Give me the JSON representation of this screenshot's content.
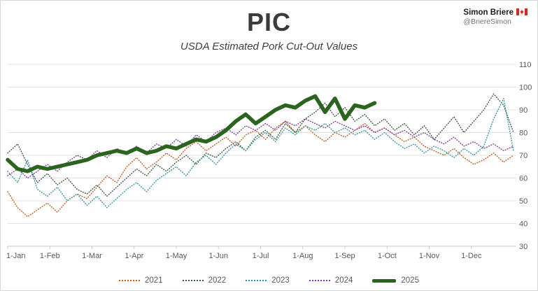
{
  "header": {
    "title": "PIC",
    "subtitle": "USDA Estimated Pork Cut-Out Values",
    "attribution_name": "Simon Briere",
    "attribution_handle": "@BriereSimon",
    "flag_icon": "canada-flag"
  },
  "chart_data": {
    "type": "line",
    "title": "PIC",
    "subtitle": "USDA Estimated Pork Cut-Out Values",
    "xlabel": "",
    "ylabel": "",
    "ylim": [
      30,
      110
    ],
    "y_ticks": [
      30,
      40,
      50,
      60,
      70,
      80,
      90,
      100,
      110
    ],
    "x_tick_labels": [
      "1-Jan",
      "1-Feb",
      "1-Mar",
      "1-Apr",
      "1-May",
      "1-Jun",
      "1-Jul",
      "1-Aug",
      "1-Sep",
      "1-Oct",
      "1-Nov",
      "1-Dec"
    ],
    "x_unit": "weekly values across one year",
    "grid": "horizontal",
    "legend_position": "bottom",
    "colors": {
      "grid": "#e2e2e2",
      "axis": "#c9c9c9",
      "tick_text": "#595959"
    },
    "series": [
      {
        "name": "2021",
        "color": "#C05A1E",
        "style": "dotted",
        "values": [
          54,
          47,
          43,
          46,
          49,
          45,
          50,
          53,
          51,
          56,
          61,
          58,
          65,
          69,
          64,
          67,
          71,
          68,
          73,
          76,
          72,
          75,
          78,
          74,
          79,
          81,
          77,
          82,
          85,
          80,
          83,
          79,
          76,
          80,
          78,
          81,
          84,
          80,
          82,
          79,
          76,
          78,
          74,
          72,
          70,
          73,
          69,
          66,
          68,
          71,
          67,
          70
        ]
      },
      {
        "name": "2022",
        "color": "#3E553F",
        "style": "dotted",
        "values": [
          71,
          75,
          66,
          58,
          62,
          57,
          60,
          55,
          53,
          57,
          52,
          56,
          60,
          64,
          61,
          66,
          63,
          67,
          70,
          66,
          71,
          69,
          73,
          76,
          72,
          78,
          81,
          77,
          84,
          80,
          86,
          89,
          93,
          87,
          91,
          85,
          88,
          83,
          86,
          81,
          84,
          79,
          83,
          77,
          82,
          87,
          80,
          85,
          90,
          97,
          92,
          80
        ]
      },
      {
        "name": "2023",
        "color": "#36929E",
        "style": "dotted",
        "values": [
          63,
          58,
          68,
          55,
          52,
          56,
          50,
          53,
          48,
          52,
          47,
          51,
          55,
          58,
          54,
          59,
          62,
          65,
          61,
          67,
          70,
          66,
          71,
          75,
          72,
          77,
          80,
          76,
          82,
          79,
          83,
          81,
          84,
          80,
          82,
          79,
          81,
          77,
          80,
          76,
          73,
          75,
          71,
          74,
          72,
          69,
          73,
          70,
          74,
          86,
          95,
          72
        ]
      },
      {
        "name": "2024",
        "color": "#7D3C98",
        "style": "dotted",
        "values": [
          61,
          64,
          60,
          63,
          66,
          63,
          67,
          70,
          68,
          72,
          69,
          73,
          71,
          74,
          71,
          75,
          73,
          77,
          74,
          79,
          76,
          80,
          82,
          79,
          83,
          81,
          84,
          81,
          85,
          83,
          86,
          84,
          82,
          85,
          83,
          81,
          83,
          80,
          82,
          79,
          81,
          78,
          80,
          77,
          75,
          78,
          74,
          76,
          73,
          75,
          72,
          74
        ]
      },
      {
        "name": "2025",
        "color": "#2A641F",
        "style": "solid",
        "values": [
          68,
          64,
          63,
          65,
          64,
          65,
          66,
          67,
          68,
          70,
          71,
          72,
          71,
          73,
          71,
          72,
          74,
          73,
          75,
          77,
          76,
          78,
          81,
          85,
          88,
          84,
          87,
          90,
          92,
          91,
          94,
          96,
          89,
          95,
          86,
          92,
          91,
          93
        ]
      }
    ]
  }
}
